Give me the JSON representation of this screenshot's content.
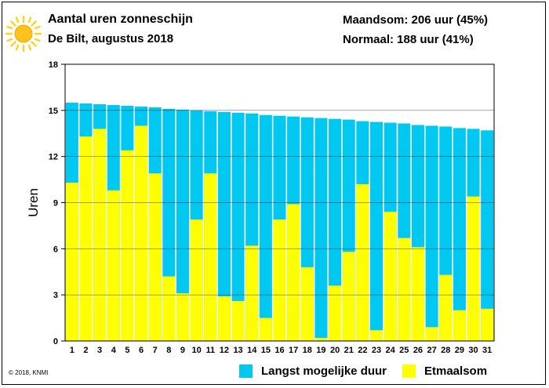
{
  "header": {
    "title": "Aantal uren zonneschijn",
    "subtitle": "De Bilt, augustus 2018",
    "month_sum": "Maandsom: 206 uur (45%)",
    "normal": "Normaal: 188 uur (41%)"
  },
  "footer": {
    "copyright": "© 2018, KNMI"
  },
  "icons": {
    "sun": "sun-icon"
  },
  "colors": {
    "max_duration": "#00C8F0",
    "daily_sum": "#FFFF00",
    "sun": "#FFD21E"
  },
  "chart_data": {
    "type": "bar",
    "ylabel": "Uren",
    "xlabel": "",
    "ylim": [
      0,
      18
    ],
    "yticks": [
      "0",
      "3",
      "6",
      "9",
      "12",
      "15",
      "18"
    ],
    "grid": true,
    "legend_position": "bottom",
    "categories": [
      "1",
      "2",
      "3",
      "4",
      "5",
      "6",
      "7",
      "8",
      "9",
      "10",
      "11",
      "12",
      "13",
      "14",
      "15",
      "16",
      "17",
      "18",
      "19",
      "20",
      "21",
      "22",
      "23",
      "24",
      "25",
      "26",
      "27",
      "28",
      "29",
      "30",
      "31"
    ],
    "series": [
      {
        "name": "Langst mogelijke duur",
        "values": [
          15.5,
          15.45,
          15.4,
          15.35,
          15.3,
          15.25,
          15.2,
          15.1,
          15.05,
          15.0,
          14.95,
          14.9,
          14.85,
          14.8,
          14.7,
          14.65,
          14.6,
          14.55,
          14.5,
          14.45,
          14.4,
          14.3,
          14.25,
          14.2,
          14.15,
          14.05,
          14.0,
          13.95,
          13.85,
          13.8,
          13.7
        ]
      },
      {
        "name": "Etmaalsom",
        "values": [
          10.3,
          13.3,
          13.8,
          9.8,
          12.4,
          14.0,
          10.9,
          4.2,
          3.1,
          7.9,
          10.9,
          2.9,
          2.6,
          6.2,
          1.5,
          7.9,
          8.9,
          4.8,
          0.2,
          3.6,
          5.8,
          10.2,
          0.7,
          8.4,
          6.7,
          6.1,
          0.9,
          4.3,
          2.0,
          9.4,
          2.1
        ]
      }
    ]
  }
}
